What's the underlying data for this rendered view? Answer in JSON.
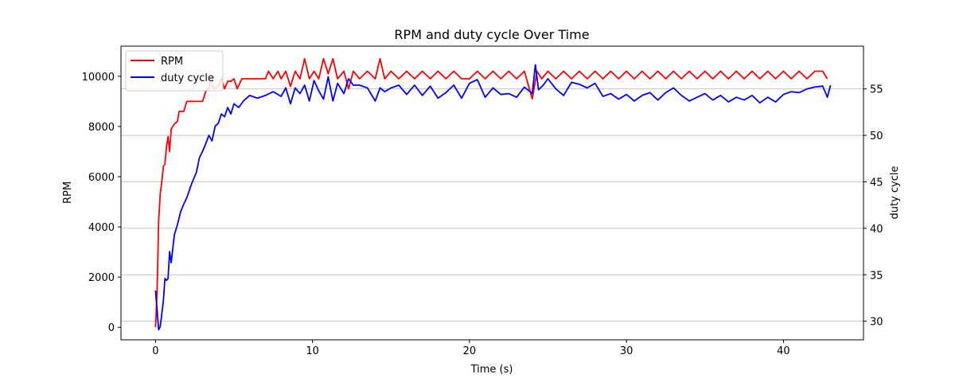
{
  "chart_data": {
    "type": "line",
    "title": "RPM and duty cycle Over Time",
    "xlabel": "Time (s)",
    "ylabel_left": "RPM",
    "ylabel_right": "duty cycle",
    "xlim": [
      -2.2,
      45.1
    ],
    "ylim_left": [
      -500,
      11200
    ],
    "ylim_right": [
      28.0,
      59.6
    ],
    "xticks": [
      0,
      10,
      20,
      30,
      40
    ],
    "yticks_left": [
      0,
      2000,
      4000,
      6000,
      8000,
      10000
    ],
    "yticks_right": [
      30,
      35,
      40,
      45,
      50,
      55
    ],
    "grid": "right-axis horizontal",
    "legend_position": "top-left",
    "series": [
      {
        "name": "RPM",
        "axis": "left",
        "color": "#ff0000",
        "points": [
          [
            0,
            0
          ],
          [
            0.1,
            1400
          ],
          [
            0.2,
            4200
          ],
          [
            0.3,
            5300
          ],
          [
            0.4,
            5800
          ],
          [
            0.5,
            6400
          ],
          [
            0.6,
            6500
          ],
          [
            0.7,
            7200
          ],
          [
            0.8,
            7600
          ],
          [
            0.9,
            7000
          ],
          [
            1.0,
            7900
          ],
          [
            1.2,
            8100
          ],
          [
            1.4,
            8200
          ],
          [
            1.5,
            8600
          ],
          [
            1.8,
            8600
          ],
          [
            2.0,
            9000
          ],
          [
            2.5,
            9000
          ],
          [
            3.0,
            9000
          ],
          [
            3.2,
            9400
          ],
          [
            3.4,
            9500
          ],
          [
            3.5,
            9900
          ],
          [
            3.7,
            9500
          ],
          [
            4.0,
            9600
          ],
          [
            4.2,
            9900
          ],
          [
            4.4,
            9500
          ],
          [
            4.6,
            9800
          ],
          [
            4.8,
            9800
          ],
          [
            5.0,
            9900
          ],
          [
            5.2,
            9500
          ],
          [
            5.5,
            9900
          ],
          [
            6.0,
            9900
          ],
          [
            7.0,
            9900
          ],
          [
            7.2,
            10200
          ],
          [
            7.5,
            9900
          ],
          [
            7.8,
            10200
          ],
          [
            8.0,
            9900
          ],
          [
            8.3,
            10200
          ],
          [
            8.6,
            9600
          ],
          [
            8.9,
            10200
          ],
          [
            9.2,
            9900
          ],
          [
            9.5,
            10700
          ],
          [
            9.8,
            9900
          ],
          [
            10.1,
            10200
          ],
          [
            10.4,
            9900
          ],
          [
            10.7,
            10700
          ],
          [
            11.0,
            10100
          ],
          [
            11.3,
            10700
          ],
          [
            11.6,
            9900
          ],
          [
            12.0,
            10200
          ],
          [
            12.3,
            9500
          ],
          [
            12.6,
            10200
          ],
          [
            13.0,
            9900
          ],
          [
            13.5,
            10200
          ],
          [
            14.0,
            9900
          ],
          [
            14.3,
            10700
          ],
          [
            14.6,
            9900
          ],
          [
            15.0,
            10200
          ],
          [
            15.5,
            9900
          ],
          [
            16.0,
            10200
          ],
          [
            16.5,
            9900
          ],
          [
            17.0,
            10200
          ],
          [
            17.5,
            9900
          ],
          [
            18.0,
            10200
          ],
          [
            18.5,
            9900
          ],
          [
            19.0,
            10200
          ],
          [
            19.5,
            9900
          ],
          [
            20.0,
            9900
          ],
          [
            20.5,
            10200
          ],
          [
            21.0,
            9900
          ],
          [
            21.5,
            10200
          ],
          [
            22.0,
            9900
          ],
          [
            22.5,
            10200
          ],
          [
            23.0,
            9900
          ],
          [
            23.5,
            10200
          ],
          [
            24.0,
            9100
          ],
          [
            24.3,
            10200
          ],
          [
            24.6,
            9900
          ],
          [
            25.0,
            10200
          ],
          [
            25.5,
            9900
          ],
          [
            26.0,
            10200
          ],
          [
            26.5,
            9900
          ],
          [
            27.0,
            10200
          ],
          [
            27.5,
            9900
          ],
          [
            28.0,
            10200
          ],
          [
            28.5,
            9900
          ],
          [
            29.0,
            10200
          ],
          [
            29.5,
            9900
          ],
          [
            30.0,
            10200
          ],
          [
            30.5,
            9900
          ],
          [
            31.0,
            10200
          ],
          [
            31.5,
            9900
          ],
          [
            32.0,
            10200
          ],
          [
            32.5,
            9900
          ],
          [
            33.0,
            10200
          ],
          [
            33.5,
            9900
          ],
          [
            34.0,
            10200
          ],
          [
            34.5,
            9900
          ],
          [
            35.0,
            10200
          ],
          [
            35.5,
            9900
          ],
          [
            36.0,
            10200
          ],
          [
            36.5,
            9900
          ],
          [
            37.0,
            10200
          ],
          [
            37.5,
            9900
          ],
          [
            38.0,
            10200
          ],
          [
            38.5,
            9900
          ],
          [
            39.0,
            10200
          ],
          [
            39.5,
            9900
          ],
          [
            40.0,
            10200
          ],
          [
            40.5,
            9900
          ],
          [
            41.0,
            10200
          ],
          [
            41.5,
            9900
          ],
          [
            42.0,
            10200
          ],
          [
            42.5,
            10200
          ],
          [
            42.8,
            9900
          ]
        ]
      },
      {
        "name": "duty cycle",
        "axis": "right",
        "color": "#0000ff",
        "points": [
          [
            0,
            33.3
          ],
          [
            0.1,
            31.2
          ],
          [
            0.2,
            29.1
          ],
          [
            0.3,
            29.4
          ],
          [
            0.4,
            30.8
          ],
          [
            0.5,
            32.2
          ],
          [
            0.6,
            34.6
          ],
          [
            0.7,
            34.4
          ],
          [
            0.8,
            34.6
          ],
          [
            0.9,
            37.5
          ],
          [
            1.0,
            36.3
          ],
          [
            1.2,
            39.3
          ],
          [
            1.4,
            40.4
          ],
          [
            1.6,
            41.8
          ],
          [
            1.8,
            42.6
          ],
          [
            2.0,
            43.3
          ],
          [
            2.3,
            44.8
          ],
          [
            2.6,
            46.0
          ],
          [
            2.8,
            47.6
          ],
          [
            3.0,
            48.3
          ],
          [
            3.2,
            49.1
          ],
          [
            3.4,
            50.0
          ],
          [
            3.6,
            49.4
          ],
          [
            3.8,
            51.0
          ],
          [
            4.0,
            51.3
          ],
          [
            4.2,
            52.3
          ],
          [
            4.4,
            52.0
          ],
          [
            4.6,
            53.0
          ],
          [
            4.8,
            52.3
          ],
          [
            5.0,
            53.4
          ],
          [
            5.3,
            53.0
          ],
          [
            5.6,
            53.7
          ],
          [
            6.0,
            54.3
          ],
          [
            6.5,
            54.0
          ],
          [
            7.0,
            54.3
          ],
          [
            7.5,
            54.7
          ],
          [
            8.0,
            54.2
          ],
          [
            8.3,
            55.1
          ],
          [
            8.6,
            53.4
          ],
          [
            8.9,
            55.1
          ],
          [
            9.2,
            54.5
          ],
          [
            9.5,
            55.4
          ],
          [
            9.8,
            53.7
          ],
          [
            10.1,
            55.9
          ],
          [
            10.4,
            54.8
          ],
          [
            10.7,
            53.9
          ],
          [
            11.0,
            56.3
          ],
          [
            11.3,
            53.7
          ],
          [
            11.6,
            55.6
          ],
          [
            12.0,
            54.5
          ],
          [
            12.3,
            56.1
          ],
          [
            12.6,
            55.4
          ],
          [
            13.0,
            55.4
          ],
          [
            13.5,
            55.1
          ],
          [
            14.0,
            53.7
          ],
          [
            14.3,
            55.1
          ],
          [
            14.6,
            54.7
          ],
          [
            15.0,
            55.1
          ],
          [
            15.5,
            55.4
          ],
          [
            16.0,
            54.4
          ],
          [
            16.5,
            55.4
          ],
          [
            17.0,
            54.3
          ],
          [
            17.5,
            55.3
          ],
          [
            18.0,
            54.0
          ],
          [
            18.5,
            54.6
          ],
          [
            19.0,
            55.4
          ],
          [
            19.5,
            54.0
          ],
          [
            20.0,
            55.6
          ],
          [
            20.5,
            56.0
          ],
          [
            21.0,
            54.1
          ],
          [
            21.5,
            55.1
          ],
          [
            22.0,
            54.4
          ],
          [
            22.5,
            54.5
          ],
          [
            23.0,
            54.1
          ],
          [
            23.5,
            55.2
          ],
          [
            24.0,
            54.5
          ],
          [
            24.2,
            57.6
          ],
          [
            24.4,
            54.9
          ],
          [
            24.7,
            55.4
          ],
          [
            25.0,
            56.1
          ],
          [
            25.5,
            55.0
          ],
          [
            26.0,
            54.3
          ],
          [
            26.5,
            55.7
          ],
          [
            27.0,
            55.5
          ],
          [
            27.5,
            55.1
          ],
          [
            28.0,
            55.6
          ],
          [
            28.5,
            54.2
          ],
          [
            29.0,
            54.5
          ],
          [
            29.5,
            53.9
          ],
          [
            30.0,
            54.4
          ],
          [
            30.5,
            53.7
          ],
          [
            31.0,
            54.3
          ],
          [
            31.5,
            54.6
          ],
          [
            32.0,
            53.8
          ],
          [
            32.5,
            54.6
          ],
          [
            33.0,
            55.1
          ],
          [
            33.5,
            54.3
          ],
          [
            34.0,
            53.7
          ],
          [
            34.5,
            54.1
          ],
          [
            35.0,
            54.5
          ],
          [
            35.5,
            53.8
          ],
          [
            36.0,
            54.3
          ],
          [
            36.5,
            53.6
          ],
          [
            37.0,
            54.1
          ],
          [
            37.5,
            53.8
          ],
          [
            38.0,
            54.3
          ],
          [
            38.5,
            53.5
          ],
          [
            39.0,
            54.1
          ],
          [
            39.5,
            53.6
          ],
          [
            40.0,
            54.4
          ],
          [
            40.5,
            54.7
          ],
          [
            41.0,
            54.6
          ],
          [
            41.5,
            55.0
          ],
          [
            42.0,
            55.2
          ],
          [
            42.5,
            55.3
          ],
          [
            42.8,
            54.1
          ],
          [
            43.0,
            55.4
          ]
        ]
      }
    ]
  }
}
